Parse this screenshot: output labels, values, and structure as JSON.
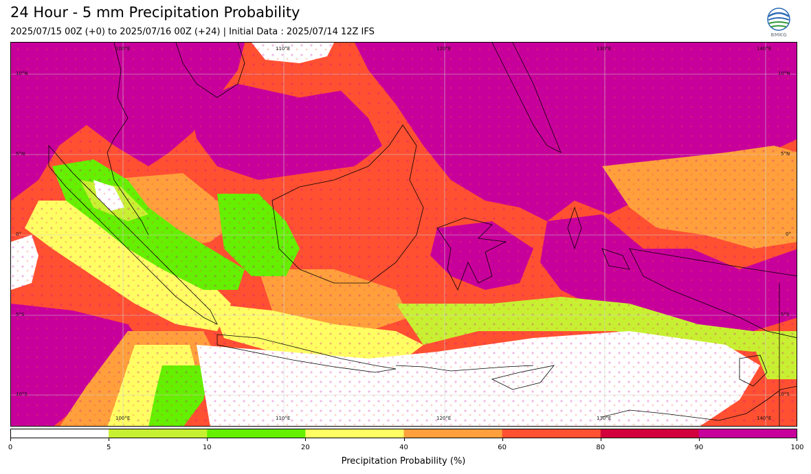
{
  "title": "24 Hour - 5 mm Precipitation Probability",
  "subtitle": "2025/07/15 00Z (+0) to 2025/07/16 00Z (+24) | Initial Data : 2025/07/14 12Z IFS",
  "logo_text": "BMKG",
  "map": {
    "longitude_ticks": [
      "100°E",
      "110°E",
      "120°E",
      "130°E",
      "140°E"
    ],
    "latitude_ticks": [
      "10°N",
      "5°N",
      "0°",
      "5°S",
      "10°S"
    ],
    "lon_range": [
      95,
      144
    ],
    "lat_range": [
      -12,
      11
    ],
    "background_probability": 5
  },
  "colorbar": {
    "title": "Precipitation Probability (%)",
    "boundaries": [
      0,
      5,
      10,
      20,
      40,
      60,
      80,
      90,
      100
    ],
    "boundary_labels": [
      "0",
      "5",
      "10",
      "20",
      "40",
      "60",
      "80",
      "90",
      "100"
    ],
    "colors": [
      "#ffffff",
      "#c8f032",
      "#64f000",
      "#ffff64",
      "#ffa03c",
      "#ff5032",
      "#d2003c",
      "#c8009b"
    ]
  },
  "colors": {
    "accent": "#c8009b",
    "land_outline": "#000000"
  }
}
